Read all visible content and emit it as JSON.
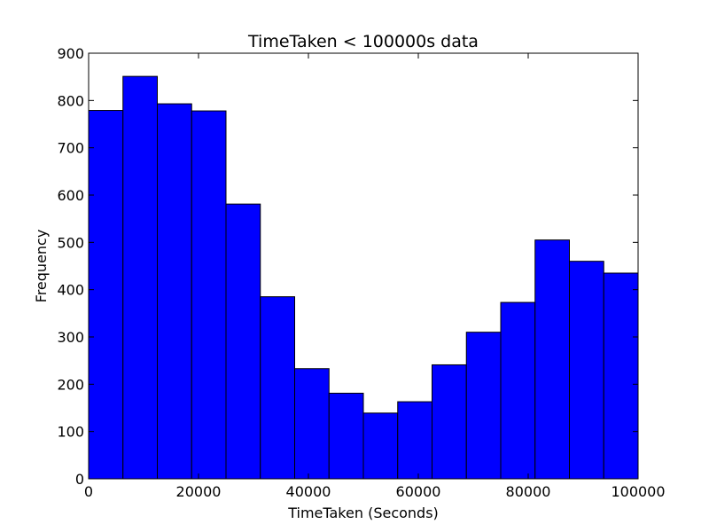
{
  "chart_data": {
    "type": "bar",
    "title": "TimeTaken < 100000s data",
    "xlabel": "TimeTaken (Seconds)",
    "ylabel": "Frequency",
    "xlim": [
      0,
      100000
    ],
    "ylim": [
      0,
      900
    ],
    "grid": false,
    "bar_color": "#0000ff",
    "edge_color": "#000000",
    "bin_edges": [
      0,
      6250,
      12500,
      18750,
      25000,
      31250,
      37500,
      43750,
      50000,
      56250,
      62500,
      68750,
      75000,
      81250,
      87500,
      93750,
      100000
    ],
    "values": [
      779,
      851,
      793,
      778,
      581,
      385,
      233,
      181,
      139,
      163,
      241,
      310,
      373,
      505,
      460,
      435
    ],
    "xticks": [
      0,
      20000,
      40000,
      60000,
      80000,
      100000
    ],
    "yticks": [
      0,
      100,
      200,
      300,
      400,
      500,
      600,
      700,
      800,
      900
    ]
  }
}
